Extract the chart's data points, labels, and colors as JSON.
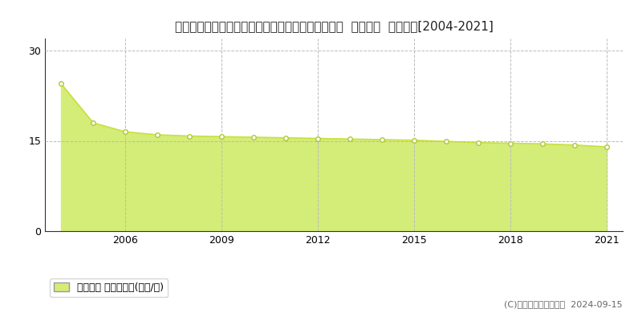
{
  "title": "愛知県知多郡南知多町大字内海字亥新田１１９番外  地価公示  地価推移[2004-2021]",
  "years": [
    2004,
    2005,
    2006,
    2007,
    2008,
    2009,
    2010,
    2011,
    2012,
    2013,
    2014,
    2015,
    2016,
    2017,
    2018,
    2019,
    2020,
    2021
  ],
  "values": [
    24.5,
    18.0,
    16.5,
    16.0,
    15.8,
    15.7,
    15.6,
    15.5,
    15.4,
    15.3,
    15.2,
    15.1,
    14.9,
    14.7,
    14.6,
    14.5,
    14.3,
    14.0
  ],
  "line_color": "#c8e040",
  "fill_color": "#d4ec78",
  "marker_face_color": "#ffffff",
  "marker_edge_color": "#b0c830",
  "grid_color": "#bbbbbb",
  "bg_color": "#ffffff",
  "ylabel_tick": [
    0,
    15,
    30
  ],
  "ylim": [
    0,
    32
  ],
  "xlim_left": 2003.5,
  "xlim_right": 2021.5,
  "xtick_years": [
    2006,
    2009,
    2012,
    2015,
    2018,
    2021
  ],
  "legend_label": "地価公示 平均坪単価(万円/坪)",
  "copyright_text": "(C)土地価格ドットコム  2024-09-15",
  "title_fontsize": 11,
  "tick_fontsize": 9,
  "legend_fontsize": 9,
  "copyright_fontsize": 8
}
